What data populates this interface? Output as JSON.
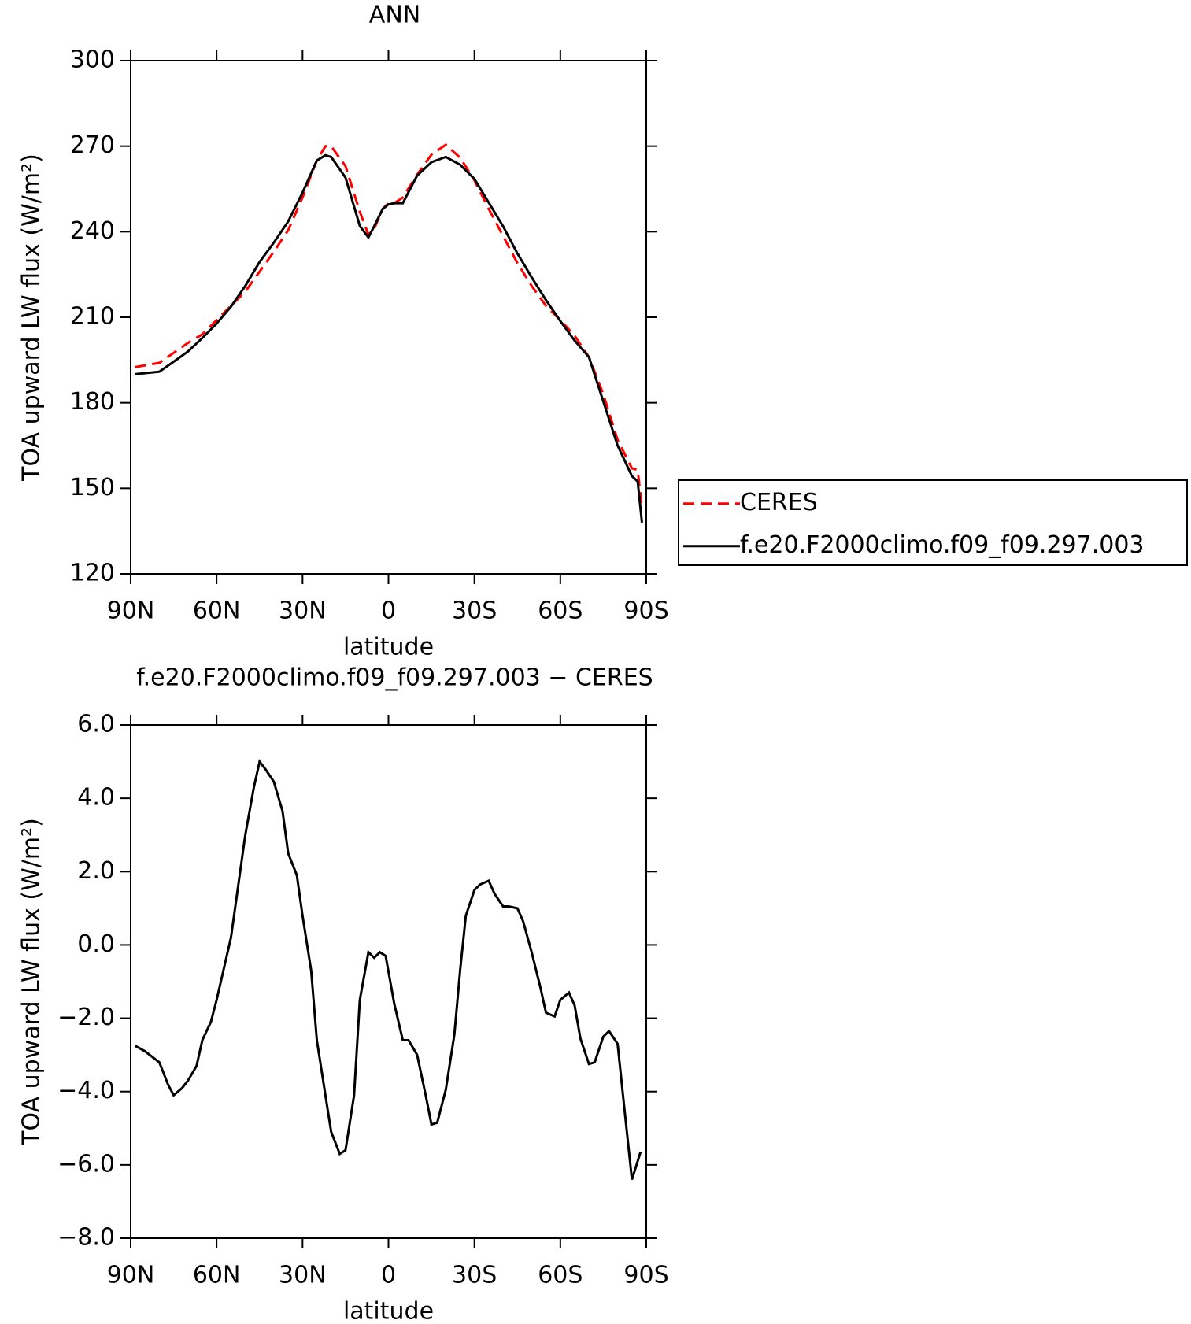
{
  "chart_data": [
    {
      "type": "line",
      "title": "ANN",
      "x_label": "latitude",
      "y_label": "TOA upward LW flux (W/m²)",
      "x": [
        88.5,
        80,
        75,
        70,
        65,
        60,
        55,
        50,
        45,
        40,
        35,
        30,
        25,
        22,
        20,
        15,
        10,
        7,
        5,
        2,
        0,
        -2,
        -5,
        -10,
        -15,
        -20,
        -25,
        -30,
        -35,
        -40,
        -45,
        -50,
        -55,
        -60,
        -65,
        -70,
        -75,
        -80,
        -85,
        -87,
        -88.5
      ],
      "series": [
        {
          "name": "CERES",
          "color": "#ff0000",
          "dashed": true,
          "values": [
            192.5,
            194,
            197.5,
            201,
            204,
            209,
            214,
            219,
            226,
            233,
            240.5,
            252,
            265,
            270,
            270,
            263,
            247,
            239,
            241,
            248,
            250,
            250,
            252,
            260,
            267,
            270.5,
            266,
            258,
            248,
            238.5,
            229,
            221,
            214,
            209,
            203.5,
            196,
            183,
            167,
            157,
            156.5,
            143
          ]
        },
        {
          "name": "f.e20.F2000climo.f09_f09.297.003",
          "color": "#000000",
          "dashed": false,
          "values": [
            190,
            190.9,
            194.4,
            198,
            202.7,
            207.8,
            213.7,
            221,
            229.4,
            236.2,
            243.6,
            253.7,
            265,
            266.8,
            266.2,
            259,
            242,
            238,
            241.9,
            248,
            249.6,
            250,
            250,
            259.7,
            264.4,
            266.2,
            263.5,
            258.5,
            250.2,
            241.9,
            232.4,
            224,
            216,
            208.7,
            201.8,
            196,
            180.5,
            165,
            154.3,
            152.4,
            138
          ]
        }
      ],
      "xlim": [
        90,
        -90
      ],
      "xticks": [
        {
          "value": 90,
          "label": "90N"
        },
        {
          "value": 60,
          "label": "60N"
        },
        {
          "value": 30,
          "label": "30N"
        },
        0,
        {
          "value": -30,
          "label": "30S"
        },
        {
          "value": -60,
          "label": "60S"
        },
        {
          "value": -90,
          "label": "90S"
        }
      ],
      "ylim": [
        120,
        300
      ],
      "yticks": [
        120,
        150,
        180,
        210,
        240,
        270,
        300
      ],
      "legend": "right"
    },
    {
      "type": "line",
      "title": "f.e20.F2000climo.f09_f09.297.003 − CERES",
      "x_label": "latitude",
      "y_label": "TOA upward LW flux (W/m²)",
      "x": [
        88.5,
        85,
        80,
        77,
        75,
        72,
        70,
        67,
        65,
        62,
        60,
        55,
        50,
        47,
        45,
        43,
        40,
        37,
        35,
        32,
        30,
        27,
        25,
        22,
        20,
        17,
        15,
        12,
        10,
        7,
        5,
        3,
        1,
        -2,
        -5,
        -7,
        -10,
        -13,
        -15,
        -17,
        -20,
        -23,
        -25,
        -27,
        -30,
        -32,
        -35,
        -37,
        -40,
        -42,
        -45,
        -47,
        -50,
        -53,
        -55,
        -58,
        -60,
        -63,
        -65,
        -67,
        -70,
        -72,
        -75,
        -77,
        -80,
        -82,
        -85,
        -88
      ],
      "series": [
        {
          "name": null,
          "color": "#000000",
          "dashed": false,
          "values": [
            -2.75,
            -2.9,
            -3.2,
            -3.8,
            -4.1,
            -3.9,
            -3.7,
            -3.3,
            -2.6,
            -2.1,
            -1.5,
            0.2,
            3.0,
            4.3,
            5.0,
            4.8,
            4.45,
            3.65,
            2.5,
            1.9,
            0.8,
            -0.7,
            -2.6,
            -4.1,
            -5.1,
            -5.7,
            -5.6,
            -4.1,
            -1.5,
            -0.2,
            -0.35,
            -0.2,
            -0.3,
            -1.6,
            -2.6,
            -2.6,
            -3.0,
            -4.1,
            -4.9,
            -4.85,
            -3.95,
            -2.45,
            -0.7,
            0.8,
            1.5,
            1.65,
            1.75,
            1.4,
            1.05,
            1.05,
            1.0,
            0.65,
            -0.2,
            -1.15,
            -1.85,
            -1.95,
            -1.5,
            -1.3,
            -1.65,
            -2.55,
            -3.25,
            -3.2,
            -2.5,
            -2.35,
            -2.7,
            -4.2,
            -6.4,
            -5.65
          ]
        }
      ],
      "xlim": [
        90,
        -90
      ],
      "xticks": [
        {
          "value": 90,
          "label": "90N"
        },
        {
          "value": 60,
          "label": "60N"
        },
        {
          "value": 30,
          "label": "30N"
        },
        0,
        {
          "value": -30,
          "label": "30S"
        },
        {
          "value": -60,
          "label": "60S"
        },
        {
          "value": -90,
          "label": "90S"
        }
      ],
      "ylim": [
        -8,
        6
      ],
      "yticks": [
        {
          "value": -8,
          "label": "−8.0"
        },
        {
          "value": -6,
          "label": "−6.0"
        },
        {
          "value": -4,
          "label": "−4.0"
        },
        {
          "value": -2,
          "label": "−2.0"
        },
        {
          "value": 0,
          "label": "0.0"
        },
        {
          "value": 2,
          "label": "2.0"
        },
        {
          "value": 4,
          "label": "4.0"
        },
        {
          "value": 6,
          "label": "6.0"
        }
      ]
    }
  ]
}
